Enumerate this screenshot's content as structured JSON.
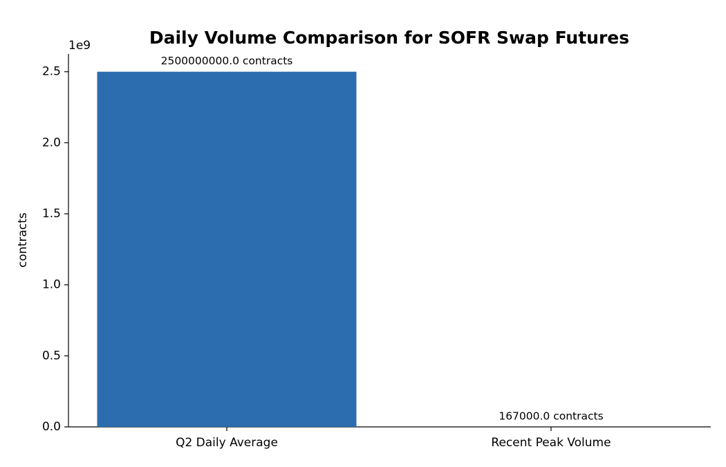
{
  "chart_data": {
    "type": "bar",
    "title": "Daily Volume Comparison for SOFR Swap Futures",
    "y_label": "contracts",
    "categories": [
      "Q2 Daily Average",
      "Recent Peak Volume"
    ],
    "values": [
      2500000000,
      167000
    ],
    "value_labels": [
      "2500000000.0 contracts",
      "167000.0 contracts"
    ],
    "color": "#2c6db0",
    "ylim": [
      0,
      2625000000
    ],
    "offset_label": "1e9",
    "yticks": [
      {
        "value": 0,
        "label": "0.0"
      },
      {
        "value": 500000000,
        "label": "0.5"
      },
      {
        "value": 1000000000,
        "label": "1.0"
      },
      {
        "value": 1500000000,
        "label": "1.5"
      },
      {
        "value": 2000000000,
        "label": "2.0"
      },
      {
        "value": 2500000000,
        "label": "2.5"
      }
    ],
    "grid": false
  }
}
